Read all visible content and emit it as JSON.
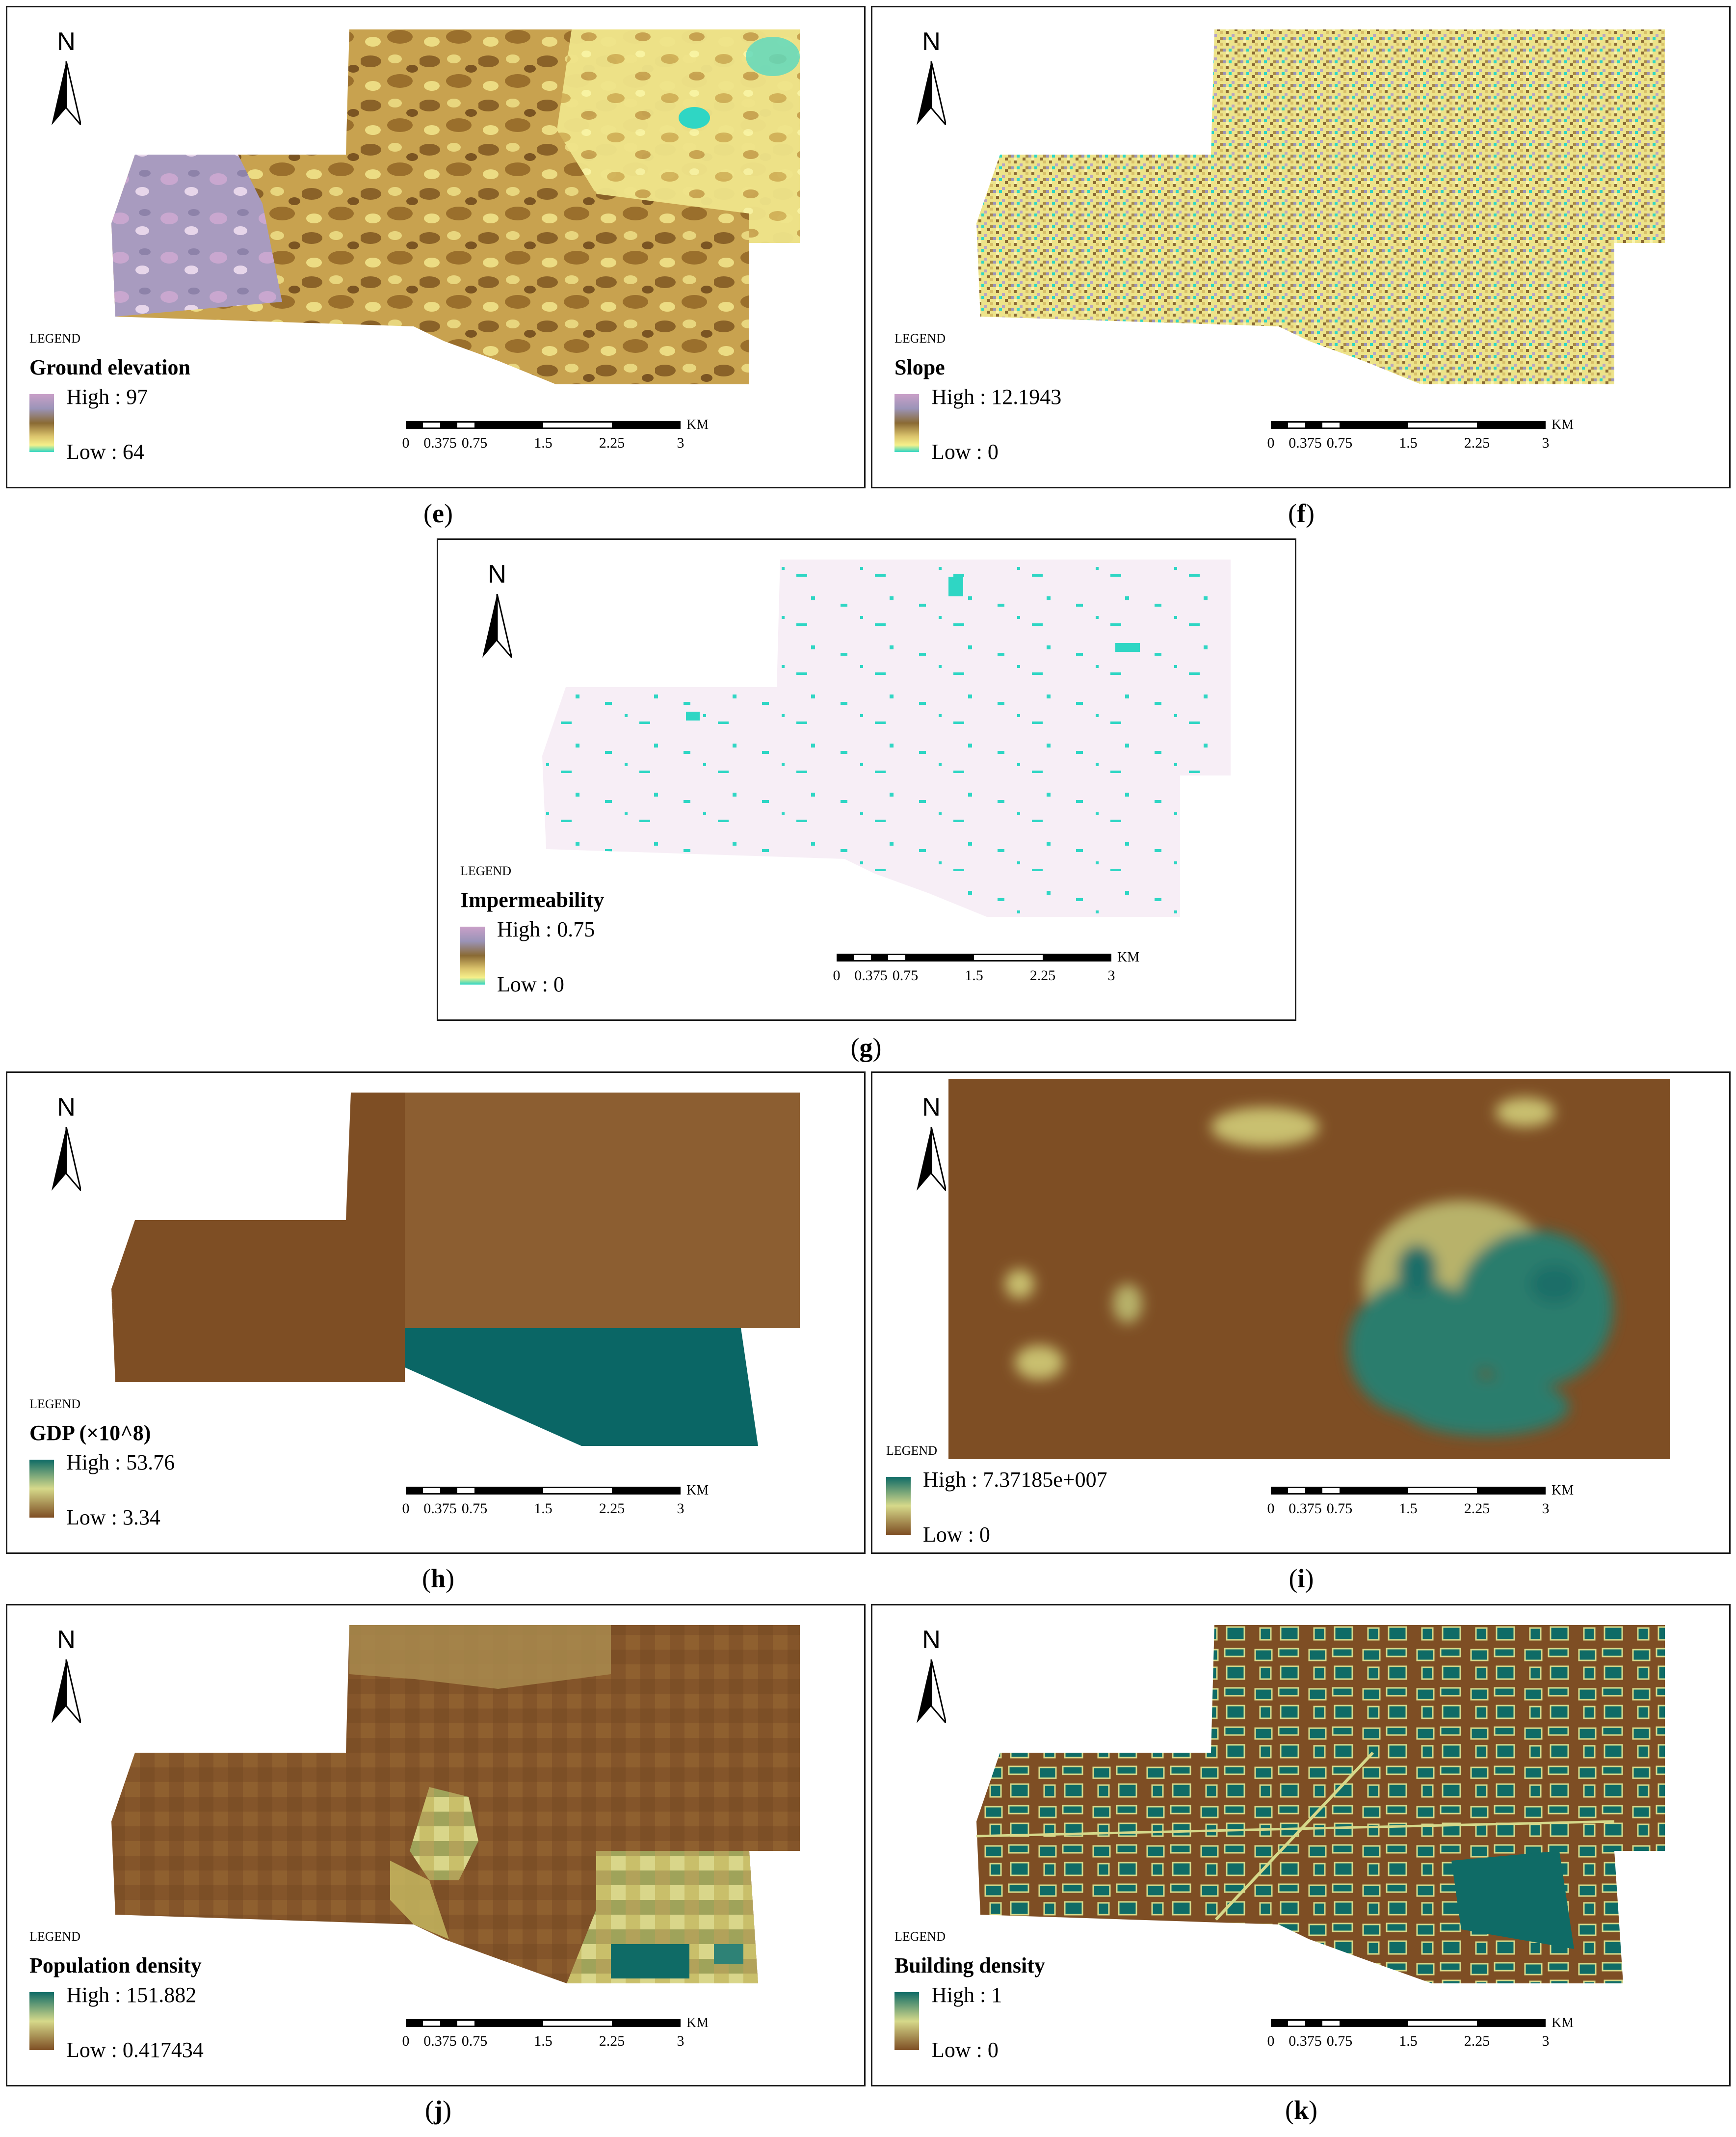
{
  "north_label": "N",
  "legend_word": "LEGEND",
  "scalebar": {
    "ticks": [
      "0",
      "0.375",
      "0.75",
      "1.5",
      "2.25",
      "3"
    ],
    "unit": "KM"
  },
  "panels": {
    "e": {
      "title": "Ground elevation",
      "high": "High : 97",
      "low": "Low : 64",
      "caption": "e",
      "ramp": [
        "#c9a0c8",
        "#9b94b8",
        "#8a6a34",
        "#d9c16a",
        "#f6f08a",
        "#2fd6c4"
      ]
    },
    "f": {
      "title": "Slope",
      "high": "High : 12.1943",
      "low": "Low : 0",
      "caption": "f",
      "ramp": [
        "#c9a0c8",
        "#9b94b8",
        "#8a6a34",
        "#d9c16a",
        "#f6f08a",
        "#2fd6c4"
      ]
    },
    "g": {
      "title": "Impermeability",
      "high": "High : 0.75",
      "low": "Low : 0",
      "caption": "g",
      "ramp": [
        "#c9a0c8",
        "#9b94b8",
        "#8a6a34",
        "#d9c16a",
        "#f6f08a",
        "#2fd6c4"
      ]
    },
    "h": {
      "title": "GDP (×10^8)",
      "high": "High : 53.76",
      "low": "Low : 3.34",
      "caption": "h",
      "ramp": [
        "#0f6b66",
        "#d6d98a",
        "#7e4e24"
      ]
    },
    "i": {
      "title": "",
      "high": "High : 7.37185e+007",
      "low": "Low : 0",
      "caption": "i",
      "ramp": [
        "#0f6b66",
        "#d6d98a",
        "#7e4e24"
      ]
    },
    "j": {
      "title": "Population density",
      "high": "High : 151.882",
      "low": "Low : 0.417434",
      "caption": "j",
      "ramp": [
        "#0f6b66",
        "#d6d98a",
        "#7e4e24"
      ]
    },
    "k": {
      "title": "Building density",
      "high": "High : 1",
      "low": "Low : 0",
      "caption": "k",
      "ramp": [
        "#0f6b66",
        "#d6d98a",
        "#7e4e24"
      ]
    }
  },
  "colors": {
    "brown": "#7e4e24",
    "teal": "#0f6b66",
    "cyan": "#2fd6c4",
    "pale": "#f6f08a"
  }
}
